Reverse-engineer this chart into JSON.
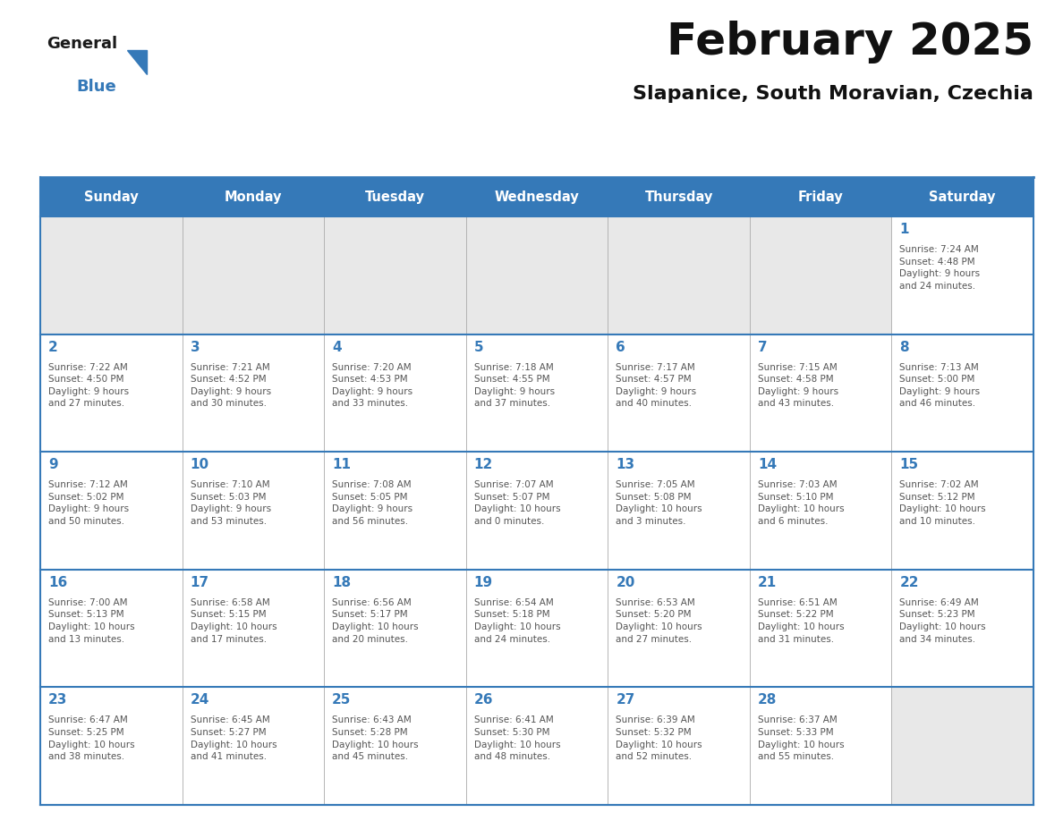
{
  "title": "February 2025",
  "subtitle": "Slapanice, South Moravian, Czechia",
  "header_color": "#3579b8",
  "header_text_color": "#ffffff",
  "empty_cell_bg": "#e8e8e8",
  "filled_cell_bg": "#ffffff",
  "day_number_color": "#3579b8",
  "info_text_color": "#555555",
  "border_color": "#3579b8",
  "grid_line_color": "#aaaaaa",
  "days_of_week": [
    "Sunday",
    "Monday",
    "Tuesday",
    "Wednesday",
    "Thursday",
    "Friday",
    "Saturday"
  ],
  "weeks": [
    [
      {
        "day": null,
        "info": null
      },
      {
        "day": null,
        "info": null
      },
      {
        "day": null,
        "info": null
      },
      {
        "day": null,
        "info": null
      },
      {
        "day": null,
        "info": null
      },
      {
        "day": null,
        "info": null
      },
      {
        "day": 1,
        "info": "Sunrise: 7:24 AM\nSunset: 4:48 PM\nDaylight: 9 hours\nand 24 minutes."
      }
    ],
    [
      {
        "day": 2,
        "info": "Sunrise: 7:22 AM\nSunset: 4:50 PM\nDaylight: 9 hours\nand 27 minutes."
      },
      {
        "day": 3,
        "info": "Sunrise: 7:21 AM\nSunset: 4:52 PM\nDaylight: 9 hours\nand 30 minutes."
      },
      {
        "day": 4,
        "info": "Sunrise: 7:20 AM\nSunset: 4:53 PM\nDaylight: 9 hours\nand 33 minutes."
      },
      {
        "day": 5,
        "info": "Sunrise: 7:18 AM\nSunset: 4:55 PM\nDaylight: 9 hours\nand 37 minutes."
      },
      {
        "day": 6,
        "info": "Sunrise: 7:17 AM\nSunset: 4:57 PM\nDaylight: 9 hours\nand 40 minutes."
      },
      {
        "day": 7,
        "info": "Sunrise: 7:15 AM\nSunset: 4:58 PM\nDaylight: 9 hours\nand 43 minutes."
      },
      {
        "day": 8,
        "info": "Sunrise: 7:13 AM\nSunset: 5:00 PM\nDaylight: 9 hours\nand 46 minutes."
      }
    ],
    [
      {
        "day": 9,
        "info": "Sunrise: 7:12 AM\nSunset: 5:02 PM\nDaylight: 9 hours\nand 50 minutes."
      },
      {
        "day": 10,
        "info": "Sunrise: 7:10 AM\nSunset: 5:03 PM\nDaylight: 9 hours\nand 53 minutes."
      },
      {
        "day": 11,
        "info": "Sunrise: 7:08 AM\nSunset: 5:05 PM\nDaylight: 9 hours\nand 56 minutes."
      },
      {
        "day": 12,
        "info": "Sunrise: 7:07 AM\nSunset: 5:07 PM\nDaylight: 10 hours\nand 0 minutes."
      },
      {
        "day": 13,
        "info": "Sunrise: 7:05 AM\nSunset: 5:08 PM\nDaylight: 10 hours\nand 3 minutes."
      },
      {
        "day": 14,
        "info": "Sunrise: 7:03 AM\nSunset: 5:10 PM\nDaylight: 10 hours\nand 6 minutes."
      },
      {
        "day": 15,
        "info": "Sunrise: 7:02 AM\nSunset: 5:12 PM\nDaylight: 10 hours\nand 10 minutes."
      }
    ],
    [
      {
        "day": 16,
        "info": "Sunrise: 7:00 AM\nSunset: 5:13 PM\nDaylight: 10 hours\nand 13 minutes."
      },
      {
        "day": 17,
        "info": "Sunrise: 6:58 AM\nSunset: 5:15 PM\nDaylight: 10 hours\nand 17 minutes."
      },
      {
        "day": 18,
        "info": "Sunrise: 6:56 AM\nSunset: 5:17 PM\nDaylight: 10 hours\nand 20 minutes."
      },
      {
        "day": 19,
        "info": "Sunrise: 6:54 AM\nSunset: 5:18 PM\nDaylight: 10 hours\nand 24 minutes."
      },
      {
        "day": 20,
        "info": "Sunrise: 6:53 AM\nSunset: 5:20 PM\nDaylight: 10 hours\nand 27 minutes."
      },
      {
        "day": 21,
        "info": "Sunrise: 6:51 AM\nSunset: 5:22 PM\nDaylight: 10 hours\nand 31 minutes."
      },
      {
        "day": 22,
        "info": "Sunrise: 6:49 AM\nSunset: 5:23 PM\nDaylight: 10 hours\nand 34 minutes."
      }
    ],
    [
      {
        "day": 23,
        "info": "Sunrise: 6:47 AM\nSunset: 5:25 PM\nDaylight: 10 hours\nand 38 minutes."
      },
      {
        "day": 24,
        "info": "Sunrise: 6:45 AM\nSunset: 5:27 PM\nDaylight: 10 hours\nand 41 minutes."
      },
      {
        "day": 25,
        "info": "Sunrise: 6:43 AM\nSunset: 5:28 PM\nDaylight: 10 hours\nand 45 minutes."
      },
      {
        "day": 26,
        "info": "Sunrise: 6:41 AM\nSunset: 5:30 PM\nDaylight: 10 hours\nand 48 minutes."
      },
      {
        "day": 27,
        "info": "Sunrise: 6:39 AM\nSunset: 5:32 PM\nDaylight: 10 hours\nand 52 minutes."
      },
      {
        "day": 28,
        "info": "Sunrise: 6:37 AM\nSunset: 5:33 PM\nDaylight: 10 hours\nand 55 minutes."
      },
      {
        "day": null,
        "info": null
      }
    ]
  ]
}
